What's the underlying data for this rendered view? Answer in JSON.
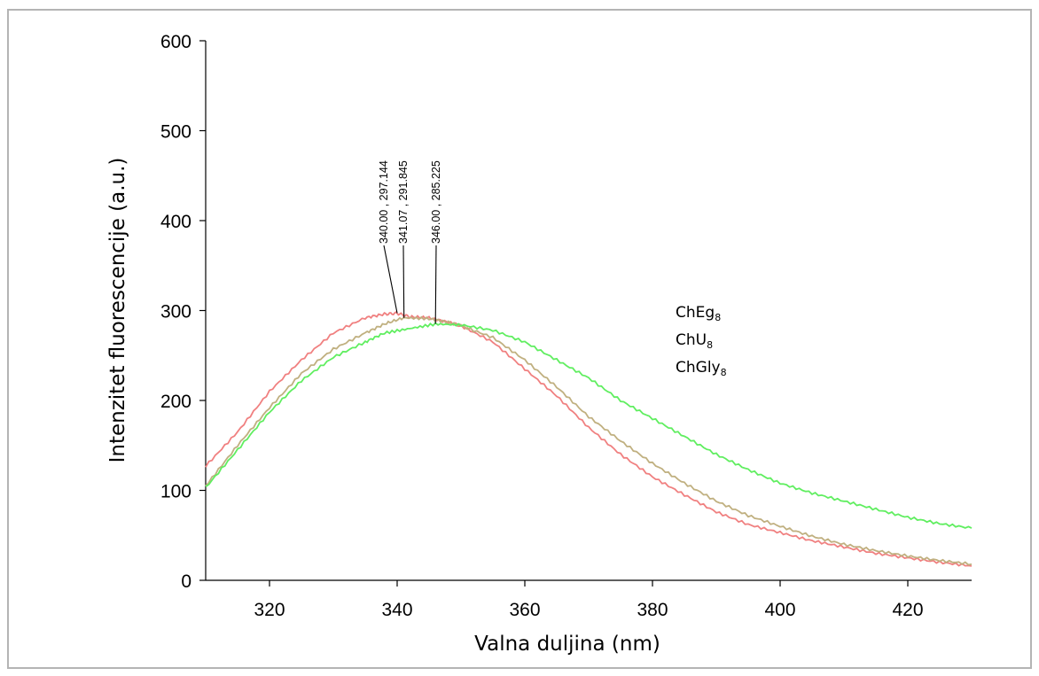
{
  "chart_data": {
    "type": "line",
    "xlabel": "Valna duljina (nm)",
    "ylabel": "Intenzitet fluorescencije (a.u.)",
    "xlim": [
      310,
      430
    ],
    "ylim": [
      0,
      600
    ],
    "x_ticks": [
      320,
      340,
      360,
      380,
      400,
      420
    ],
    "y_ticks": [
      0,
      100,
      200,
      300,
      400,
      500,
      600
    ],
    "grid": false,
    "legend": [
      {
        "base": "ChEg",
        "sub": "8"
      },
      {
        "base": "ChU",
        "sub": "8"
      },
      {
        "base": "ChGly",
        "sub": "8"
      }
    ],
    "series": [
      {
        "color": "#f08080",
        "points": [
          [
            310,
            127
          ],
          [
            315,
            165
          ],
          [
            320,
            210
          ],
          [
            325,
            245
          ],
          [
            330,
            275
          ],
          [
            335,
            292
          ],
          [
            338,
            296
          ],
          [
            340,
            297
          ],
          [
            342,
            293
          ],
          [
            345,
            292
          ],
          [
            348,
            287
          ],
          [
            350,
            283
          ],
          [
            355,
            265
          ],
          [
            360,
            235
          ],
          [
            365,
            205
          ],
          [
            370,
            170
          ],
          [
            375,
            140
          ],
          [
            380,
            115
          ],
          [
            385,
            95
          ],
          [
            390,
            76
          ],
          [
            395,
            62
          ],
          [
            400,
            53
          ],
          [
            405,
            44
          ],
          [
            410,
            37
          ],
          [
            415,
            30
          ],
          [
            420,
            25
          ],
          [
            425,
            20
          ],
          [
            430,
            16
          ]
        ]
      },
      {
        "color": "#c0b080",
        "points": [
          [
            310,
            105
          ],
          [
            315,
            150
          ],
          [
            320,
            192
          ],
          [
            325,
            230
          ],
          [
            330,
            257
          ],
          [
            335,
            275
          ],
          [
            338,
            285
          ],
          [
            341,
            292
          ],
          [
            345,
            291
          ],
          [
            348,
            287
          ],
          [
            350,
            283
          ],
          [
            355,
            270
          ],
          [
            360,
            245
          ],
          [
            365,
            215
          ],
          [
            370,
            182
          ],
          [
            375,
            155
          ],
          [
            380,
            130
          ],
          [
            385,
            108
          ],
          [
            390,
            88
          ],
          [
            395,
            72
          ],
          [
            400,
            60
          ],
          [
            405,
            49
          ],
          [
            410,
            40
          ],
          [
            415,
            33
          ],
          [
            420,
            27
          ],
          [
            425,
            22
          ],
          [
            430,
            18
          ]
        ]
      },
      {
        "color": "#60ee60",
        "points": [
          [
            310,
            103
          ],
          [
            315,
            145
          ],
          [
            320,
            187
          ],
          [
            325,
            222
          ],
          [
            330,
            248
          ],
          [
            335,
            265
          ],
          [
            338,
            275
          ],
          [
            342,
            280
          ],
          [
            346,
            285
          ],
          [
            350,
            284
          ],
          [
            355,
            278
          ],
          [
            360,
            265
          ],
          [
            365,
            245
          ],
          [
            370,
            225
          ],
          [
            375,
            200
          ],
          [
            380,
            180
          ],
          [
            385,
            160
          ],
          [
            390,
            140
          ],
          [
            395,
            123
          ],
          [
            400,
            108
          ],
          [
            405,
            97
          ],
          [
            410,
            88
          ],
          [
            415,
            79
          ],
          [
            420,
            70
          ],
          [
            425,
            63
          ],
          [
            430,
            58
          ]
        ]
      }
    ],
    "annotations": [
      {
        "text": "340.00 , 297.144",
        "x": 340.0,
        "y": 297.144
      },
      {
        "text": "341.07 , 291.845",
        "x": 341.07,
        "y": 291.845
      },
      {
        "text": "346.00 , 285.225",
        "x": 346.0,
        "y": 285.225
      }
    ]
  }
}
